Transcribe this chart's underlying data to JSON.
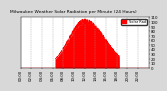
{
  "title": "Milwaukee Weather Solar Radiation per Minute (24 Hours)",
  "bg_color": "#d8d8d8",
  "plot_bg_color": "#ffffff",
  "bar_color": "#ff0000",
  "legend_color": "#ff0000",
  "legend_label": "Solar Rad",
  "ylim": [
    0,
    110
  ],
  "num_points": 1440,
  "sunrise": 390,
  "sunset": 1110,
  "peak_minute": 720,
  "peak_value": 100,
  "grid_color": "#999999",
  "tick_label_size": 2.8,
  "title_fontsize": 3.2,
  "ytick_step": 10,
  "xtick_step": 120
}
